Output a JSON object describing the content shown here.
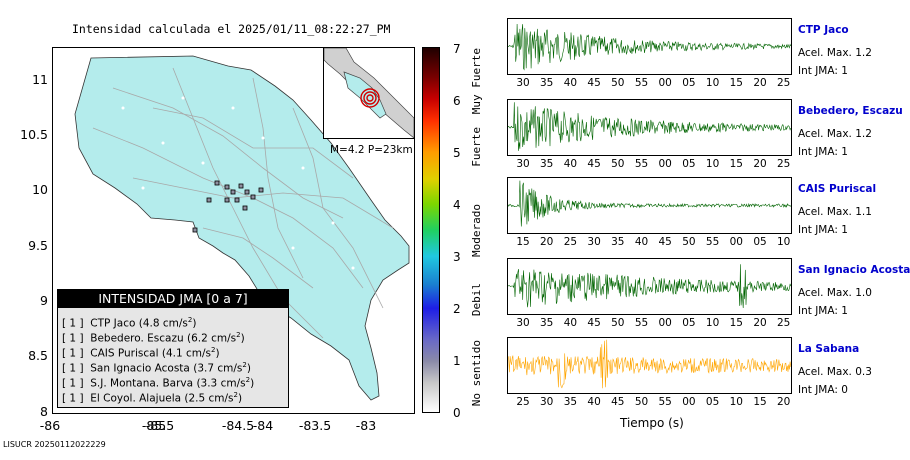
{
  "title": "Intensidad calculada el 2025/01/11_08:22:27_PM",
  "map": {
    "y_ticks": [
      "11",
      "10.5",
      "10",
      "9.5",
      "9",
      "8.5",
      "8"
    ],
    "x_ticks": [
      "-86",
      "-85.5",
      "-85",
      "-84.5",
      "-84",
      "-83.5",
      "-83"
    ],
    "land_color": "#b4ecec",
    "epicenter_color": "#d40000"
  },
  "inset": {
    "caption": "M=4.2 P=23km"
  },
  "legend": {
    "header": "INTENSIDAD JMA [0 a 7]",
    "rows": [
      {
        "code": "[ 1 ]",
        "station": "CTP Jaco",
        "accel": "(4.8 cm/s",
        "sup": "2",
        "close": ")"
      },
      {
        "code": "[ 1 ]",
        "station": "Bebedero. Escazu",
        "accel": "(6.2 cm/s",
        "sup": "2",
        "close": ")"
      },
      {
        "code": "[ 1 ]",
        "station": "CAIS Puriscal",
        "accel": "(4.1 cm/s",
        "sup": "2",
        "close": ")"
      },
      {
        "code": "[ 1 ]",
        "station": "San Ignacio Acosta",
        "accel": "(3.7 cm/s",
        "sup": "2",
        "close": ")"
      },
      {
        "code": "[ 1 ]",
        "station": "S.J. Montana. Barva",
        "accel": "(3.3 cm/s",
        "sup": "2",
        "close": ")"
      },
      {
        "code": "[ 1 ]",
        "station": "El Coyol. Alajuela",
        "accel": "(2.5 cm/s",
        "sup": "2",
        "close": ")"
      }
    ]
  },
  "colorbar": {
    "numbers": [
      "7",
      "6",
      "5",
      "4",
      "3",
      "2",
      "1",
      "0"
    ],
    "labels": [
      "Muy Fuerte",
      "Fuerte",
      "Moderado",
      "Debil",
      "No sentido"
    ]
  },
  "panels": [
    {
      "name": "CTP Jaco",
      "accel": "Acel. Max. 1.2",
      "int": "Int JMA: 1",
      "color": "#006400",
      "ticks": [
        "30",
        "35",
        "40",
        "45",
        "50",
        "55",
        "00",
        "05",
        "10",
        "15",
        "20",
        "25"
      ],
      "onset": 0.02,
      "decay": 0.28,
      "amp": 0.95
    },
    {
      "name": "Bebedero, Escazu",
      "accel": "Acel. Max. 1.2",
      "int": "Int JMA: 1",
      "color": "#006400",
      "ticks": [
        "30",
        "35",
        "40",
        "45",
        "50",
        "55",
        "00",
        "05",
        "10",
        "15",
        "20",
        "25"
      ],
      "onset": 0.02,
      "decay": 0.35,
      "amp": 0.9
    },
    {
      "name": "CAIS Puriscal",
      "accel": "Acel. Max. 1.1",
      "int": "Int JMA: 1",
      "color": "#006400",
      "ticks": [
        "15",
        "20",
        "25",
        "30",
        "35",
        "40",
        "45",
        "50",
        "55",
        "00",
        "05",
        "10"
      ],
      "onset": 0.04,
      "decay": 0.1,
      "amp": 0.9
    },
    {
      "name": "San Ignacio Acosta",
      "accel": "Acel. Max. 1.0",
      "int": "Int JMA: 1",
      "color": "#006400",
      "ticks": [
        "30",
        "35",
        "40",
        "45",
        "50",
        "55",
        "00",
        "05",
        "10",
        "15",
        "20",
        "25"
      ],
      "onset": 0.02,
      "decay": 0.5,
      "amp": 0.8
    },
    {
      "name": "La Sabana",
      "accel": "Acel. Max. 0.3",
      "int": "Int JMA: 0",
      "color": "#ffa500",
      "ticks": [
        "25",
        "30",
        "35",
        "40",
        "45",
        "50",
        "55",
        "00",
        "05",
        "10",
        "15",
        "20"
      ],
      "onset": 0.0,
      "decay": 2.0,
      "amp": 0.35
    }
  ],
  "x_axis_label": "Tiempo (s)",
  "footer": "LISUCR 20250112022229"
}
